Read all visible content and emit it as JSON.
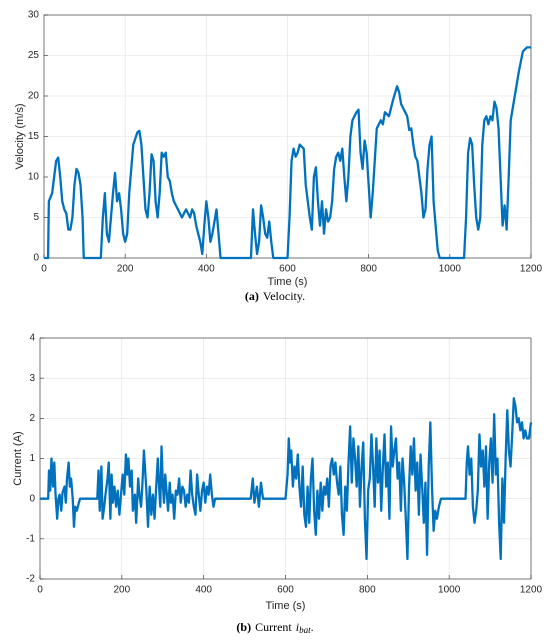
{
  "chart_data": [
    {
      "type": "line",
      "ylabel": "Velocity (m/s)",
      "xlabel": "Time (s)",
      "caption_prefix": "(a)",
      "caption_text": "Velocity.",
      "color": "#0072bd",
      "grid": true,
      "xlim": [
        0,
        1200
      ],
      "xticks": [
        0,
        200,
        400,
        600,
        800,
        1000,
        1200
      ],
      "ylim": [
        0,
        30
      ],
      "yticks": [
        0,
        5,
        10,
        15,
        20,
        25,
        30
      ],
      "x": [
        0,
        10,
        12,
        20,
        25,
        30,
        35,
        40,
        45,
        50,
        55,
        60,
        65,
        70,
        75,
        80,
        85,
        90,
        95,
        98,
        140,
        145,
        150,
        155,
        160,
        165,
        170,
        175,
        180,
        185,
        190,
        195,
        200,
        205,
        210,
        215,
        220,
        230,
        235,
        240,
        245,
        250,
        255,
        260,
        265,
        270,
        275,
        280,
        285,
        290,
        295,
        300,
        305,
        310,
        315,
        320,
        325,
        330,
        340,
        345,
        350,
        355,
        360,
        365,
        370,
        375,
        380,
        385,
        390,
        395,
        400,
        405,
        410,
        415,
        420,
        425,
        430,
        435,
        510,
        515,
        520,
        525,
        530,
        535,
        540,
        545,
        550,
        555,
        560,
        565,
        600,
        605,
        610,
        615,
        620,
        625,
        630,
        640,
        645,
        650,
        655,
        660,
        665,
        670,
        675,
        680,
        685,
        690,
        695,
        700,
        705,
        710,
        715,
        720,
        725,
        730,
        735,
        740,
        745,
        750,
        755,
        760,
        770,
        775,
        780,
        785,
        790,
        795,
        800,
        805,
        810,
        815,
        820,
        830,
        835,
        840,
        850,
        860,
        870,
        875,
        880,
        890,
        895,
        900,
        905,
        910,
        915,
        920,
        925,
        930,
        935,
        940,
        945,
        950,
        955,
        960,
        965,
        970,
        975,
        1035,
        1040,
        1045,
        1050,
        1055,
        1060,
        1065,
        1070,
        1075,
        1080,
        1085,
        1090,
        1095,
        1100,
        1105,
        1110,
        1115,
        1120,
        1125,
        1130,
        1135,
        1140,
        1145,
        1150,
        1160,
        1170,
        1180,
        1190,
        1200
      ],
      "values": [
        0,
        0,
        7,
        8,
        10,
        12,
        12.4,
        10,
        7,
        6,
        5.5,
        3.5,
        3.5,
        5,
        9,
        11,
        10.5,
        9,
        5,
        0,
        0,
        5,
        8,
        3,
        2,
        5,
        8,
        10.5,
        7,
        8,
        6,
        3,
        2,
        3,
        8,
        11,
        14,
        15.5,
        15.7,
        14,
        10,
        6,
        5,
        8,
        12.8,
        12,
        7,
        5,
        8,
        13,
        12.5,
        13,
        10,
        9.5,
        8,
        7,
        6.5,
        6,
        5,
        5.5,
        6,
        5.5,
        5,
        6,
        5.5,
        4,
        3,
        2,
        0.5,
        4,
        7,
        5,
        2,
        3,
        4.5,
        6,
        3,
        0,
        0,
        6,
        3,
        0.5,
        2,
        6.5,
        5,
        3,
        2.5,
        4.5,
        2,
        0,
        0,
        5,
        12,
        13.5,
        12.5,
        13,
        14,
        13.5,
        9,
        7,
        5,
        3.5,
        10,
        11.2,
        7,
        4,
        7,
        3,
        6,
        4.5,
        5,
        7,
        11,
        12.5,
        13,
        12,
        13.5,
        10,
        7,
        10,
        15,
        17,
        18,
        18.3,
        13,
        11,
        14.5,
        13,
        9,
        5,
        8,
        12,
        16,
        17,
        16.5,
        18,
        17.5,
        19.5,
        21.2,
        20.5,
        19,
        18,
        17.5,
        15.8,
        16,
        14,
        12.5,
        12,
        10,
        8,
        5,
        6,
        11,
        14,
        15,
        7,
        4,
        1,
        0,
        0,
        5,
        13,
        14.8,
        14,
        9,
        5,
        3.5,
        5,
        14,
        17,
        17.5,
        16.5,
        17.5,
        17,
        19.3,
        18.5,
        16,
        10,
        4,
        6.5,
        3.5,
        10,
        17,
        20,
        23,
        25.5,
        26,
        26
      ]
    },
    {
      "type": "line",
      "ylabel": "Current (A)",
      "xlabel": "Time (s)",
      "caption_prefix": "(b)",
      "caption_text": "Current",
      "caption_var": "i",
      "caption_sub": "bat",
      "caption_end": ".",
      "color": "#0072bd",
      "grid": true,
      "xlim": [
        0,
        1200
      ],
      "xticks": [
        0,
        200,
        400,
        600,
        800,
        1000,
        1200
      ],
      "ylim": [
        -2,
        4
      ],
      "yticks": [
        -2,
        -1,
        0,
        1,
        2,
        3,
        4
      ],
      "x": [
        0,
        20,
        22,
        25,
        28,
        32,
        35,
        38,
        42,
        45,
        48,
        52,
        55,
        60,
        63,
        66,
        70,
        73,
        76,
        80,
        83,
        86,
        90,
        95,
        98,
        140,
        143,
        146,
        150,
        153,
        157,
        160,
        165,
        168,
        172,
        175,
        178,
        182,
        186,
        190,
        194,
        198,
        202,
        206,
        210,
        213,
        216,
        220,
        224,
        227,
        232,
        235,
        240,
        243,
        247,
        250,
        254,
        257,
        260,
        264,
        268,
        272,
        276,
        280,
        284,
        288,
        291,
        294,
        297,
        300,
        303,
        306,
        310,
        313,
        317,
        320,
        324,
        328,
        332,
        336,
        340,
        344,
        348,
        352,
        356,
        360,
        364,
        368,
        372,
        376,
        380,
        384,
        388,
        392,
        396,
        400,
        404,
        408,
        412,
        416,
        420,
        424,
        428,
        515,
        520,
        524,
        530,
        535,
        540,
        545,
        600,
        605,
        608,
        611,
        614,
        618,
        622,
        626,
        630,
        634,
        638,
        642,
        646,
        650,
        654,
        658,
        662,
        666,
        670,
        674,
        678,
        682,
        686,
        690,
        694,
        698,
        702,
        706,
        710,
        714,
        718,
        722,
        726,
        730,
        734,
        738,
        742,
        746,
        750,
        754,
        758,
        762,
        766,
        770,
        774,
        778,
        782,
        786,
        790,
        794,
        798,
        802,
        806,
        810,
        814,
        818,
        822,
        826,
        830,
        834,
        838,
        842,
        846,
        850,
        854,
        858,
        862,
        866,
        870,
        874,
        878,
        882,
        886,
        890,
        894,
        898,
        902,
        906,
        910,
        914,
        918,
        922,
        926,
        930,
        934,
        938,
        942,
        946,
        950,
        954,
        958,
        962,
        966,
        970,
        975,
        980,
        1040,
        1043,
        1046,
        1050,
        1054,
        1058,
        1062,
        1066,
        1070,
        1074,
        1078,
        1082,
        1086,
        1090,
        1094,
        1098,
        1102,
        1106,
        1110,
        1114,
        1118,
        1122,
        1126,
        1130,
        1134,
        1138,
        1142,
        1146,
        1150,
        1154,
        1158,
        1162,
        1166,
        1170,
        1174,
        1178,
        1182,
        1186,
        1190,
        1195,
        1200
      ],
      "values": [
        0,
        0,
        0.7,
        0.2,
        1.0,
        0.3,
        0.9,
        0.1,
        -0.5,
        0,
        0.1,
        -0.3,
        0.15,
        0.3,
        -0.1,
        0.5,
        0.9,
        0.3,
        0.5,
        0,
        -0.7,
        -0.2,
        -0.3,
        -0.1,
        0,
        0,
        0.7,
        -0.3,
        0.8,
        -0.5,
        -0.2,
        0.1,
        0.5,
        0.9,
        -0.5,
        0.6,
        -0.1,
        0.3,
        -0.2,
        0.2,
        -0.4,
        0.1,
        0.6,
        0.1,
        1.1,
        0.6,
        1.0,
        0.3,
        0.7,
        -0.3,
        0.1,
        -0.6,
        0.5,
        0.1,
        -0.2,
        0.3,
        1.2,
        0.7,
        0.2,
        -0.7,
        0.3,
        -0.4,
        0.1,
        -0.5,
        0.3,
        1.0,
        0.3,
        -0.2,
        1.3,
        0.4,
        -0.1,
        0.6,
        0.1,
        -0.3,
        0.4,
        -0.1,
        0.1,
        -0.5,
        0.2,
        0.1,
        0.5,
        -0.1,
        0.3,
        0.2,
        -0.2,
        0.1,
        -0.1,
        0.7,
        0.1,
        -0.2,
        -0.4,
        0.6,
        0.1,
        -0.3,
        0.2,
        0.4,
        -0.1,
        0.3,
        0.1,
        0.6,
        0.1,
        -0.2,
        0,
        0,
        0.5,
        -0.1,
        0.3,
        -0.2,
        0.4,
        0,
        0,
        0.6,
        1.5,
        0.9,
        1.2,
        0.3,
        0.8,
        0.5,
        1.1,
        0.3,
        -0.2,
        0.8,
        -0.4,
        -0.7,
        0.3,
        -0.6,
        0.5,
        1.0,
        -0.3,
        -0.9,
        0.2,
        -0.5,
        0.4,
        -0.3,
        0.3,
        0.1,
        0.5,
        -0.2,
        0.8,
        1.0,
        0.6,
        0.9,
        0.4,
        0.1,
        0.8,
        -0.4,
        -0.9,
        0.3,
        -0.3,
        0.9,
        1.8,
        0.4,
        1.5,
        1.0,
        0.3,
        1.3,
        -0.2,
        0.8,
        1.4,
        -0.5,
        -1.5,
        0.2,
        0.5,
        1.6,
        0.8,
        -0.2,
        1.5,
        0.4,
        1.2,
        -0.3,
        0.8,
        1.6,
        0.3,
        0.9,
        -0.5,
        1.8,
        0.8,
        1.2,
        1.5,
        0.5,
        0.9,
        -0.3,
        1.0,
        0.4,
        -0.5,
        -1.5,
        0.3,
        1.3,
        0.6,
        1.5,
        0.2,
        0.9,
        -0.4,
        1.1,
        0.3,
        -0.6,
        0.4,
        -1.4,
        0.8,
        1.9,
        0.3,
        -0.8,
        -0.3,
        -0.5,
        -0.2,
        0,
        0,
        0.9,
        1.3,
        0.6,
        1.0,
        -0.2,
        -0.6,
        -0.3,
        0.2,
        1.6,
        0.8,
        1.2,
        0.3,
        1.3,
        -0.5,
        0.9,
        1.5,
        0.4,
        2.1,
        0.6,
        1.0,
        -0.6,
        -1.5,
        0.5,
        -0.6,
        1.0,
        2.2,
        1.2,
        0.8,
        1.6,
        2.5,
        2.3,
        1.9,
        2.0,
        1.7,
        1.9,
        1.5,
        1.7,
        1.5,
        1.5,
        1.9
      ]
    }
  ]
}
